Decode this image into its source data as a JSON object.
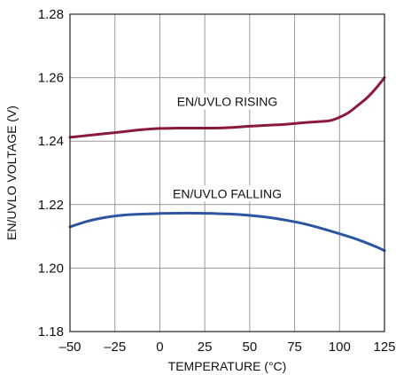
{
  "chart_data": {
    "type": "line",
    "title": "",
    "xlabel": "TEMPERATURE (°C)",
    "ylabel": "EN/UVLO VOLTAGE (V)",
    "xlim": [
      -50,
      125
    ],
    "ylim": [
      1.18,
      1.28
    ],
    "x_ticks": [
      -50,
      -25,
      0,
      25,
      50,
      75,
      100,
      125
    ],
    "x_tick_labels": [
      "–50",
      "–25",
      "0",
      "25",
      "50",
      "75",
      "100",
      "125"
    ],
    "y_ticks": [
      1.18,
      1.2,
      1.22,
      1.24,
      1.26,
      1.28
    ],
    "y_tick_labels": [
      "1.18",
      "1.20",
      "1.22",
      "1.24",
      "1.26",
      "1.28"
    ],
    "grid": true,
    "series": [
      {
        "name": "EN/UVLO RISING",
        "color": "#8b1a3a",
        "x": [
          -50,
          -40,
          -30,
          -20,
          -10,
          0,
          10,
          20,
          30,
          40,
          50,
          60,
          70,
          80,
          90,
          95,
          100,
          105,
          110,
          115,
          120,
          125
        ],
        "y": [
          1.2412,
          1.2418,
          1.2424,
          1.243,
          1.2436,
          1.244,
          1.2441,
          1.2441,
          1.2441,
          1.2443,
          1.2447,
          1.245,
          1.2453,
          1.2458,
          1.2462,
          1.2465,
          1.2475,
          1.249,
          1.2512,
          1.2535,
          1.2565,
          1.26
        ]
      },
      {
        "name": "EN/UVLO FALLING",
        "color": "#2e55a0",
        "x": [
          -50,
          -40,
          -30,
          -20,
          -10,
          0,
          10,
          20,
          30,
          40,
          50,
          60,
          70,
          80,
          90,
          100,
          110,
          120,
          125
        ],
        "y": [
          1.213,
          1.2148,
          1.216,
          1.2167,
          1.217,
          1.2172,
          1.2173,
          1.2173,
          1.2172,
          1.217,
          1.2166,
          1.216,
          1.2151,
          1.214,
          1.2125,
          1.2108,
          1.209,
          1.2068,
          1.2055
        ]
      }
    ],
    "annotations": [
      {
        "text": "EN/UVLO RISING",
        "x": 37.5,
        "y": 1.2525
      },
      {
        "text": "EN/UVLO FALLING",
        "x": 37.5,
        "y": 1.2235
      }
    ]
  }
}
